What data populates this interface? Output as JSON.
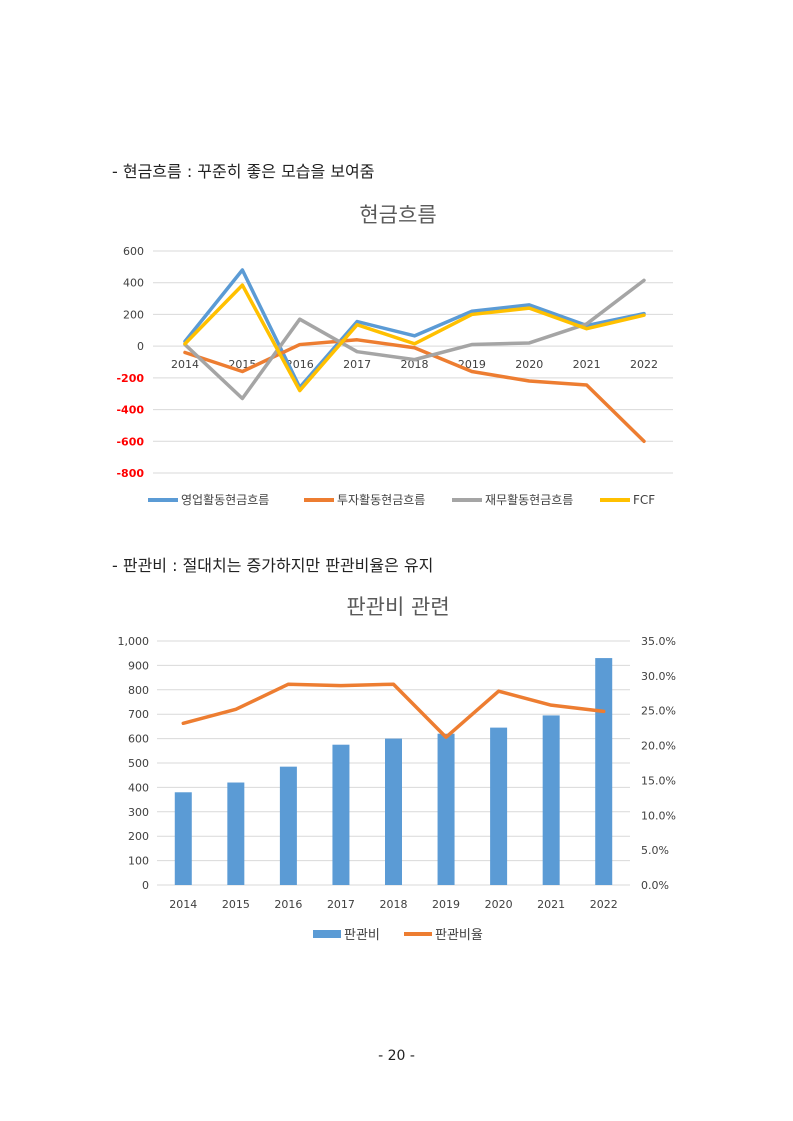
{
  "section1": {
    "heading": "-  현금흐름 : 꾸준히 좋은 모습을 보여줌"
  },
  "section2": {
    "heading": "-  판관비 : 절대치는 증가하지만 판관비율은 유지"
  },
  "page_number": "- 20 -",
  "colors": {
    "blue": "#5B9BD5",
    "orange": "#ED7D31",
    "gray": "#A5A5A5",
    "yellow": "#FFC000",
    "grid": "#D9D9D9",
    "negative": "#FF0000"
  },
  "chart_data": [
    {
      "type": "line",
      "title": "현금흐름",
      "x": [
        "2014",
        "2015",
        "2016",
        "2017",
        "2018",
        "2019",
        "2020",
        "2021",
        "2022"
      ],
      "ylim": [
        -800,
        600
      ],
      "yticks": [
        "600",
        "400",
        "200",
        "0",
        "-200",
        "-400",
        "-600",
        "-800"
      ],
      "series": [
        {
          "name": "영업활동현금흐름",
          "color": "#5B9BD5",
          "values": [
            30,
            480,
            -260,
            155,
            65,
            220,
            260,
            130,
            205
          ]
        },
        {
          "name": "투자활동현금흐름",
          "color": "#ED7D31",
          "values": [
            -40,
            -160,
            10,
            40,
            -10,
            -160,
            -220,
            -245,
            -600
          ]
        },
        {
          "name": "재무활동현금흐름",
          "color": "#A5A5A5",
          "values": [
            10,
            -330,
            170,
            -35,
            -85,
            10,
            20,
            140,
            415
          ]
        },
        {
          "name": "FCF",
          "color": "#FFC000",
          "values": [
            15,
            385,
            -280,
            135,
            15,
            200,
            240,
            110,
            195
          ]
        }
      ],
      "legend": "bottom"
    },
    {
      "type": "bar",
      "title": "판관비 관련",
      "categories": [
        "2014",
        "2015",
        "2016",
        "2017",
        "2018",
        "2019",
        "2020",
        "2021",
        "2022"
      ],
      "ylim": [
        0,
        1000
      ],
      "y2lim": [
        0,
        35
      ],
      "yticks": [
        "1,000",
        "900",
        "800",
        "700",
        "600",
        "500",
        "400",
        "300",
        "200",
        "100",
        "0"
      ],
      "y2ticks": [
        "35.0%",
        "30.0%",
        "25.0%",
        "20.0%",
        "15.0%",
        "10.0%",
        "5.0%",
        "0.0%"
      ],
      "series": [
        {
          "name": "판관비",
          "type": "bar",
          "color": "#5B9BD5",
          "values": [
            380,
            420,
            485,
            575,
            600,
            620,
            645,
            695,
            930
          ]
        },
        {
          "name": "판관비율",
          "type": "line",
          "axis": "right",
          "color": "#ED7D31",
          "values": [
            23.2,
            25.2,
            28.8,
            28.6,
            28.8,
            21.2,
            27.8,
            25.8,
            24.9
          ]
        }
      ],
      "legend": "bottom"
    }
  ]
}
